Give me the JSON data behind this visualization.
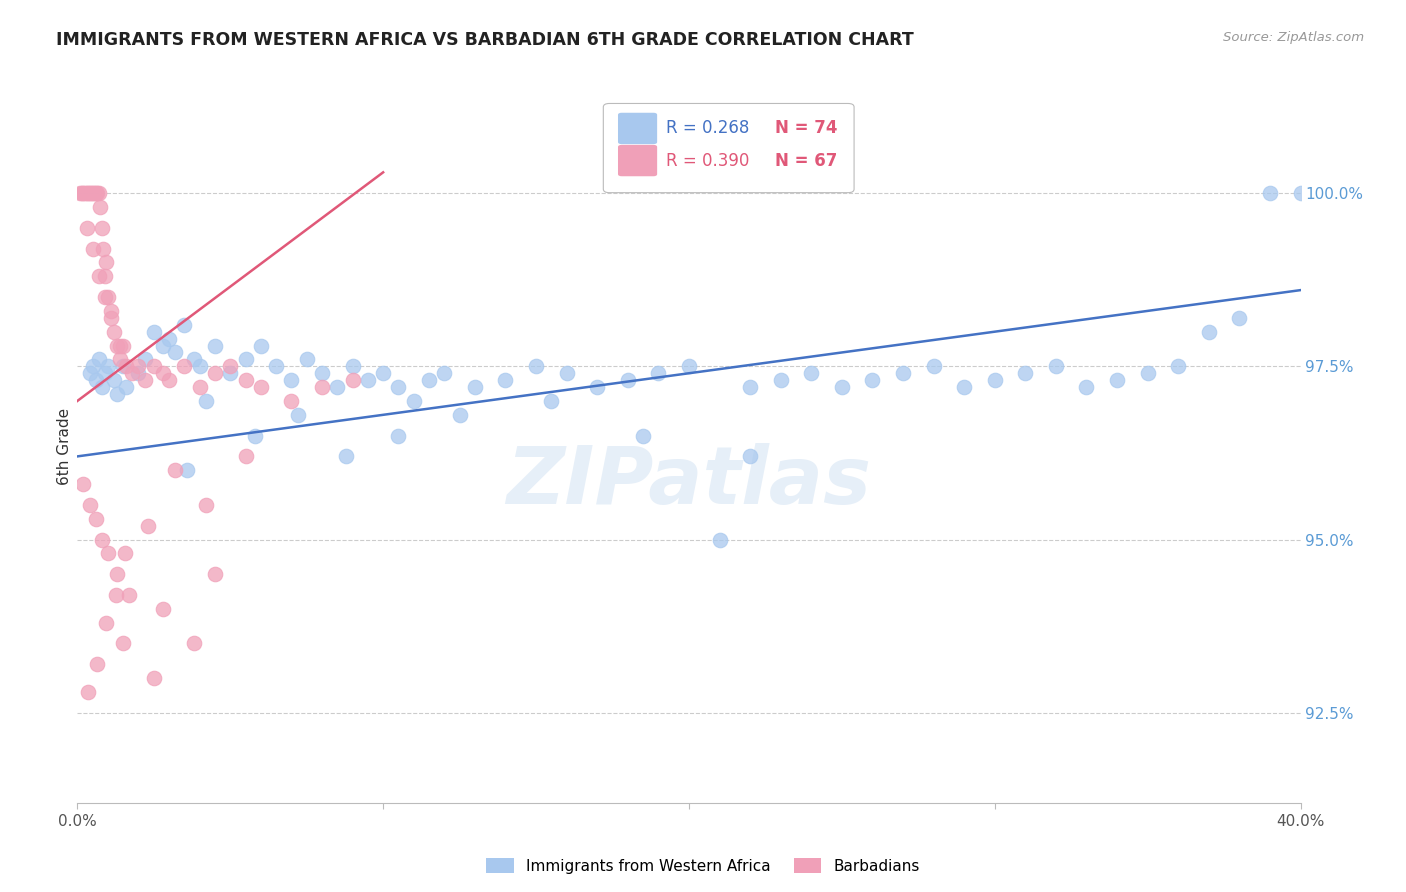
{
  "title": "IMMIGRANTS FROM WESTERN AFRICA VS BARBADIAN 6TH GRADE CORRELATION CHART",
  "source": "Source: ZipAtlas.com",
  "ylabel": "6th Grade",
  "ylabel_right_ticks": [
    92.5,
    95.0,
    97.5,
    100.0
  ],
  "ylabel_right_labels": [
    "92.5%",
    "95.0%",
    "97.5%",
    "100.0%"
  ],
  "xlim": [
    0.0,
    40.0
  ],
  "ylim": [
    91.2,
    101.5
  ],
  "watermark": "ZIPatlas",
  "legend_blue_r": "R = 0.268",
  "legend_blue_n": "N = 74",
  "legend_pink_r": "R = 0.390",
  "legend_pink_n": "N = 67",
  "blue_color": "#A8C8EE",
  "pink_color": "#F0A0B8",
  "blue_line_color": "#4472C4",
  "pink_line_color": "#E05878",
  "title_color": "#222222",
  "source_color": "#999999",
  "axis_label_color": "#333333",
  "right_tick_color": "#5B9BD5",
  "blue_trend_x0": 0.0,
  "blue_trend_y0": 96.2,
  "blue_trend_x1": 40.0,
  "blue_trend_y1": 98.6,
  "pink_trend_x0": 0.0,
  "pink_trend_y0": 97.0,
  "pink_trend_x1": 10.0,
  "pink_trend_y1": 100.3,
  "blue_scatter_x": [
    0.4,
    0.5,
    0.6,
    0.7,
    0.8,
    0.9,
    1.0,
    1.2,
    1.3,
    1.5,
    1.6,
    2.0,
    2.2,
    2.5,
    2.8,
    3.0,
    3.2,
    3.5,
    3.8,
    4.0,
    4.5,
    5.0,
    5.5,
    6.0,
    6.5,
    7.0,
    7.5,
    8.0,
    8.5,
    9.0,
    9.5,
    10.0,
    10.5,
    11.0,
    11.5,
    12.0,
    13.0,
    14.0,
    15.0,
    16.0,
    17.0,
    18.0,
    19.0,
    20.0,
    21.0,
    22.0,
    23.0,
    24.0,
    25.0,
    26.0,
    27.0,
    28.0,
    29.0,
    30.0,
    31.0,
    32.0,
    33.0,
    34.0,
    35.0,
    36.0,
    37.0,
    38.0,
    39.0,
    40.0,
    3.6,
    4.2,
    5.8,
    7.2,
    8.8,
    10.5,
    12.5,
    15.5,
    18.5,
    22.0
  ],
  "blue_scatter_y": [
    97.4,
    97.5,
    97.3,
    97.6,
    97.2,
    97.4,
    97.5,
    97.3,
    97.1,
    97.5,
    97.2,
    97.4,
    97.6,
    98.0,
    97.8,
    97.9,
    97.7,
    98.1,
    97.6,
    97.5,
    97.8,
    97.4,
    97.6,
    97.8,
    97.5,
    97.3,
    97.6,
    97.4,
    97.2,
    97.5,
    97.3,
    97.4,
    97.2,
    97.0,
    97.3,
    97.4,
    97.2,
    97.3,
    97.5,
    97.4,
    97.2,
    97.3,
    97.4,
    97.5,
    95.0,
    97.2,
    97.3,
    97.4,
    97.2,
    97.3,
    97.4,
    97.5,
    97.2,
    97.3,
    97.4,
    97.5,
    97.2,
    97.3,
    97.4,
    97.5,
    98.0,
    98.2,
    100.0,
    100.0,
    96.0,
    97.0,
    96.5,
    96.8,
    96.2,
    96.5,
    96.8,
    97.0,
    96.5,
    96.2
  ],
  "pink_scatter_x": [
    0.1,
    0.15,
    0.2,
    0.25,
    0.3,
    0.35,
    0.4,
    0.45,
    0.5,
    0.55,
    0.6,
    0.65,
    0.7,
    0.75,
    0.8,
    0.85,
    0.9,
    0.95,
    1.0,
    1.1,
    1.2,
    1.3,
    1.4,
    1.5,
    1.6,
    1.8,
    2.0,
    2.2,
    2.5,
    2.8,
    3.0,
    3.5,
    4.0,
    4.5,
    5.0,
    5.5,
    6.0,
    7.0,
    8.0,
    9.0,
    0.3,
    0.5,
    0.7,
    0.9,
    1.1,
    1.4,
    0.2,
    0.4,
    0.6,
    0.8,
    1.0,
    1.3,
    1.7,
    2.3,
    3.2,
    4.2,
    5.5,
    1.5,
    2.8,
    4.5,
    0.35,
    0.65,
    0.95,
    1.25,
    1.55,
    2.5,
    3.8
  ],
  "pink_scatter_y": [
    100.0,
    100.0,
    100.0,
    100.0,
    100.0,
    100.0,
    100.0,
    100.0,
    100.0,
    100.0,
    100.0,
    100.0,
    100.0,
    99.8,
    99.5,
    99.2,
    98.8,
    99.0,
    98.5,
    98.3,
    98.0,
    97.8,
    97.6,
    97.8,
    97.5,
    97.4,
    97.5,
    97.3,
    97.5,
    97.4,
    97.3,
    97.5,
    97.2,
    97.4,
    97.5,
    97.3,
    97.2,
    97.0,
    97.2,
    97.3,
    99.5,
    99.2,
    98.8,
    98.5,
    98.2,
    97.8,
    95.8,
    95.5,
    95.3,
    95.0,
    94.8,
    94.5,
    94.2,
    95.2,
    96.0,
    95.5,
    96.2,
    93.5,
    94.0,
    94.5,
    92.8,
    93.2,
    93.8,
    94.2,
    94.8,
    93.0,
    93.5
  ]
}
